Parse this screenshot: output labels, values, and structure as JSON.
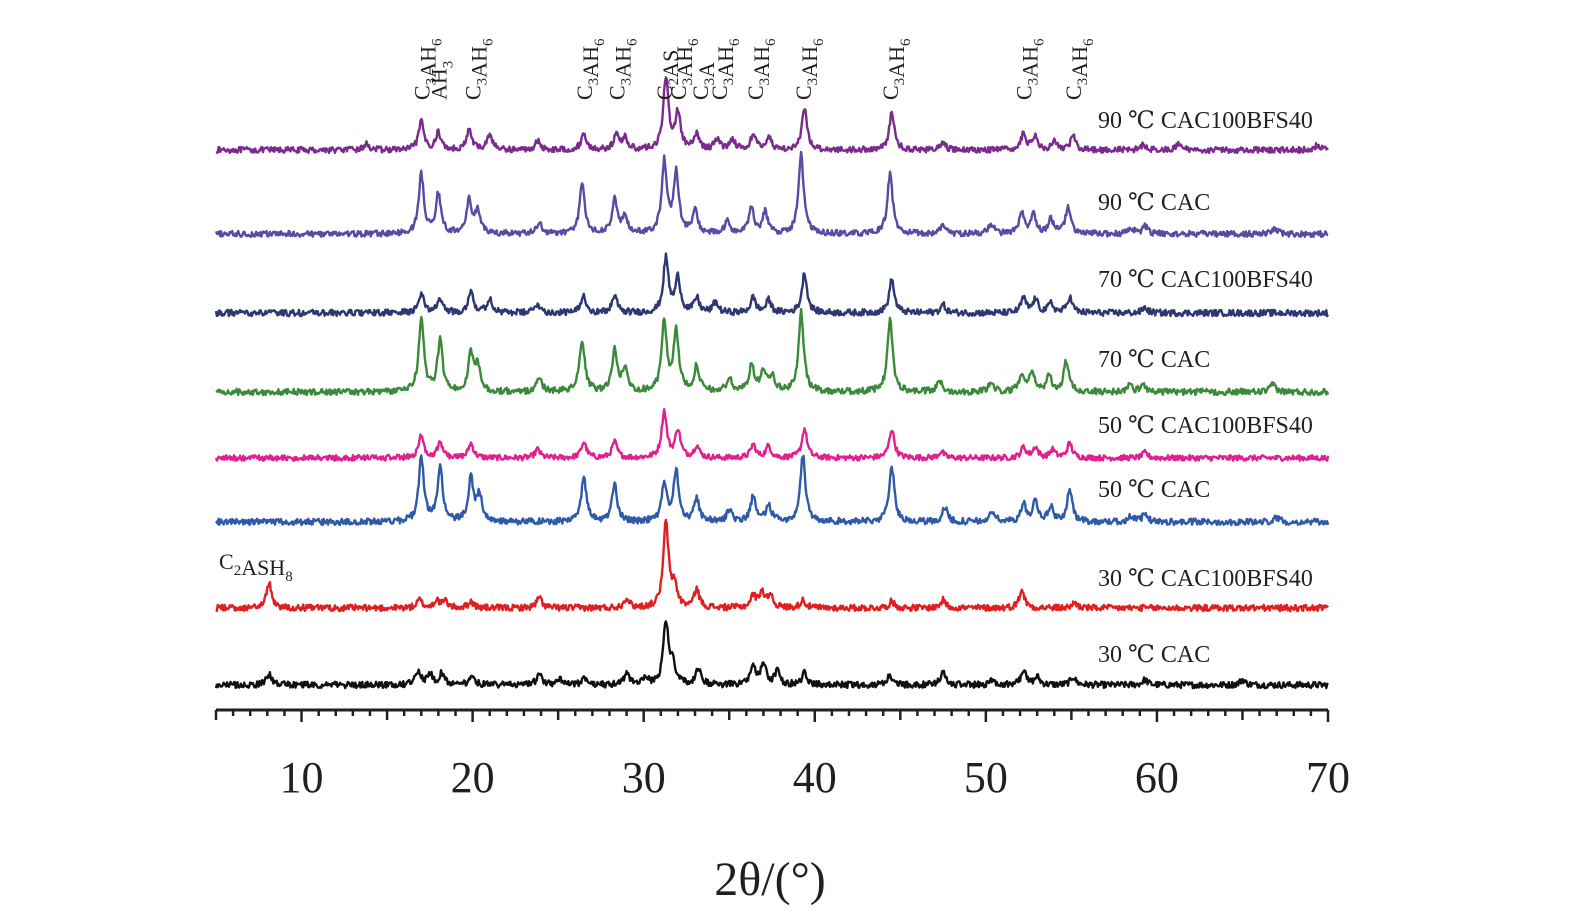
{
  "chart_data": {
    "type": "line",
    "xlabel": "2θ/(°)",
    "xlim": [
      5,
      70
    ],
    "xticks": [
      10,
      20,
      30,
      40,
      50,
      60,
      70
    ],
    "minor_step": 1,
    "grid": false,
    "series": [
      {
        "name": "90 ℃ CAC100BFS40",
        "color": "#7b2a8e",
        "noise": 0.28,
        "peaks": [
          [
            13.8,
            0.9
          ],
          [
            17.0,
            4.2
          ],
          [
            18.0,
            2.6
          ],
          [
            19.8,
            3.0
          ],
          [
            21.0,
            2.4
          ],
          [
            23.8,
            1.3
          ],
          [
            26.5,
            2.4
          ],
          [
            28.4,
            2.2
          ],
          [
            28.9,
            1.8
          ],
          [
            31.3,
            11.0
          ],
          [
            32.0,
            5.5
          ],
          [
            33.1,
            2.2
          ],
          [
            34.3,
            1.7
          ],
          [
            35.2,
            1.6
          ],
          [
            36.4,
            2.3
          ],
          [
            37.3,
            2.0
          ],
          [
            39.4,
            6.2
          ],
          [
            44.5,
            5.6
          ],
          [
            47.5,
            1.0
          ],
          [
            52.2,
            2.4
          ],
          [
            52.9,
            2.1
          ],
          [
            54.0,
            1.3
          ],
          [
            55.1,
            2.0
          ],
          [
            59.2,
            0.8
          ],
          [
            61.3,
            0.9
          ],
          [
            69.4,
            0.8
          ]
        ]
      },
      {
        "name": "90 ℃ CAC",
        "color": "#5b4aa4",
        "noise": 0.28,
        "peaks": [
          [
            17.0,
            9.0
          ],
          [
            18.0,
            6.0
          ],
          [
            19.8,
            5.0
          ],
          [
            20.3,
            3.4
          ],
          [
            23.9,
            1.6
          ],
          [
            26.4,
            7.6
          ],
          [
            28.3,
            5.2
          ],
          [
            28.9,
            2.4
          ],
          [
            31.2,
            10.8
          ],
          [
            31.9,
            9.2
          ],
          [
            33.0,
            3.4
          ],
          [
            34.9,
            1.8
          ],
          [
            36.3,
            4.0
          ],
          [
            37.1,
            3.2
          ],
          [
            39.2,
            12.0
          ],
          [
            44.4,
            9.2
          ],
          [
            47.5,
            1.4
          ],
          [
            50.3,
            1.6
          ],
          [
            52.1,
            3.0
          ],
          [
            52.8,
            2.8
          ],
          [
            53.8,
            2.2
          ],
          [
            54.8,
            4.0
          ],
          [
            58.5,
            0.9
          ],
          [
            59.3,
            1.2
          ],
          [
            66.9,
            0.8
          ]
        ]
      },
      {
        "name": "70 ℃ CAC100BFS40",
        "color": "#2e3673",
        "noise": 0.3,
        "peaks": [
          [
            17.0,
            3.0
          ],
          [
            18.1,
            2.2
          ],
          [
            19.9,
            3.4
          ],
          [
            21.0,
            2.2
          ],
          [
            23.8,
            1.4
          ],
          [
            26.5,
            2.6
          ],
          [
            28.3,
            2.6
          ],
          [
            31.3,
            8.2
          ],
          [
            32.0,
            5.2
          ],
          [
            33.1,
            2.2
          ],
          [
            34.2,
            1.6
          ],
          [
            36.4,
            2.3
          ],
          [
            37.3,
            1.9
          ],
          [
            39.4,
            6.0
          ],
          [
            44.5,
            5.0
          ],
          [
            47.5,
            1.2
          ],
          [
            52.2,
            2.2
          ],
          [
            52.9,
            2.0
          ],
          [
            53.8,
            1.4
          ],
          [
            54.9,
            2.4
          ],
          [
            59.3,
            0.8
          ]
        ]
      },
      {
        "name": "70 ℃ CAC",
        "color": "#3a8a3a",
        "noise": 0.3,
        "peaks": [
          [
            17.0,
            10.8
          ],
          [
            18.1,
            7.6
          ],
          [
            19.9,
            5.6
          ],
          [
            20.3,
            3.6
          ],
          [
            23.9,
            2.2
          ],
          [
            26.4,
            7.8
          ],
          [
            28.3,
            6.2
          ],
          [
            28.9,
            3.4
          ],
          [
            31.2,
            10.5
          ],
          [
            31.9,
            9.0
          ],
          [
            33.1,
            3.8
          ],
          [
            35.0,
            2.0
          ],
          [
            36.3,
            4.0
          ],
          [
            37.0,
            3.2
          ],
          [
            37.5,
            2.4
          ],
          [
            39.2,
            12.0
          ],
          [
            44.4,
            11.0
          ],
          [
            47.3,
            1.6
          ],
          [
            50.3,
            1.4
          ],
          [
            52.1,
            2.8
          ],
          [
            52.7,
            3.2
          ],
          [
            53.7,
            2.2
          ],
          [
            54.7,
            4.6
          ],
          [
            58.4,
            1.0
          ],
          [
            59.2,
            1.2
          ],
          [
            66.8,
            1.2
          ]
        ]
      },
      {
        "name": "50 ℃ CAC100BFS40",
        "color": "#e0208f",
        "noise": 0.26,
        "peaks": [
          [
            17.0,
            3.4
          ],
          [
            18.1,
            2.4
          ],
          [
            19.9,
            2.2
          ],
          [
            23.8,
            1.3
          ],
          [
            26.5,
            2.4
          ],
          [
            28.3,
            2.4
          ],
          [
            31.2,
            7.0
          ],
          [
            32.0,
            4.2
          ],
          [
            33.1,
            1.8
          ],
          [
            36.4,
            2.0
          ],
          [
            37.3,
            1.8
          ],
          [
            39.4,
            4.4
          ],
          [
            44.5,
            4.4
          ],
          [
            47.4,
            1.0
          ],
          [
            52.2,
            1.6
          ],
          [
            52.9,
            1.6
          ],
          [
            53.9,
            1.2
          ],
          [
            54.9,
            2.2
          ],
          [
            59.3,
            0.8
          ]
        ]
      },
      {
        "name": "50 ℃ CAC",
        "color": "#2e5aa8",
        "noise": 0.3,
        "peaks": [
          [
            17.0,
            9.6
          ],
          [
            18.1,
            8.2
          ],
          [
            19.9,
            6.6
          ],
          [
            20.4,
            3.8
          ],
          [
            26.5,
            6.8
          ],
          [
            28.3,
            5.6
          ],
          [
            31.2,
            5.6
          ],
          [
            31.9,
            7.6
          ],
          [
            33.1,
            3.4
          ],
          [
            35.0,
            1.8
          ],
          [
            36.4,
            3.8
          ],
          [
            37.3,
            2.6
          ],
          [
            39.3,
            10.2
          ],
          [
            44.5,
            8.4
          ],
          [
            47.6,
            2.2
          ],
          [
            50.4,
            1.6
          ],
          [
            52.2,
            2.6
          ],
          [
            52.9,
            3.2
          ],
          [
            53.8,
            2.2
          ],
          [
            54.9,
            4.8
          ],
          [
            58.5,
            0.9
          ],
          [
            59.3,
            1.2
          ],
          [
            67.0,
            0.7
          ]
        ]
      },
      {
        "name": "30 ℃ CAC100BFS40",
        "color": "#e02020",
        "noise": 0.3,
        "peaks": [
          [
            8.1,
            3.8
          ],
          [
            16.9,
            1.2
          ],
          [
            17.9,
            1.2
          ],
          [
            18.4,
            1.0
          ],
          [
            19.9,
            1.0
          ],
          [
            23.9,
            1.6
          ],
          [
            29.0,
            1.5
          ],
          [
            31.3,
            13.0
          ],
          [
            31.8,
            3.2
          ],
          [
            33.1,
            2.8
          ],
          [
            36.4,
            1.8
          ],
          [
            36.9,
            2.4
          ],
          [
            37.4,
            2.0
          ],
          [
            39.3,
            1.2
          ],
          [
            44.5,
            1.0
          ],
          [
            47.5,
            1.2
          ],
          [
            52.1,
            2.8
          ],
          [
            55.2,
            0.8
          ]
        ]
      },
      {
        "name": "30 ℃ CAC",
        "color": "#111111",
        "noise": 0.3,
        "peaks": [
          [
            8.1,
            1.6
          ],
          [
            16.8,
            2.2
          ],
          [
            17.5,
            1.6
          ],
          [
            18.2,
            1.8
          ],
          [
            20.0,
            1.4
          ],
          [
            23.9,
            1.6
          ],
          [
            25.1,
            0.9
          ],
          [
            26.5,
            0.8
          ],
          [
            29.0,
            1.8
          ],
          [
            30.1,
            1.0
          ],
          [
            31.3,
            9.5
          ],
          [
            31.7,
            3.2
          ],
          [
            33.2,
            2.6
          ],
          [
            36.4,
            2.8
          ],
          [
            37.0,
            3.2
          ],
          [
            37.8,
            2.0
          ],
          [
            39.4,
            1.8
          ],
          [
            44.4,
            1.4
          ],
          [
            47.5,
            1.8
          ],
          [
            50.4,
            0.8
          ],
          [
            52.2,
            2.2
          ],
          [
            53.0,
            1.2
          ],
          [
            55.1,
            1.2
          ],
          [
            59.3,
            0.8
          ],
          [
            65.0,
            0.8
          ]
        ]
      }
    ],
    "peak_labels": [
      {
        "text": "C3AH6",
        "x": 17.0
      },
      {
        "text": "AH3",
        "x": 18.0
      },
      {
        "text": "C3AH6",
        "x": 20.0
      },
      {
        "text": "C3AH6",
        "x": 26.5
      },
      {
        "text": "C3AH6",
        "x": 28.4
      },
      {
        "text": "C2AS",
        "x": 31.2
      },
      {
        "text": "C3AH6",
        "x": 32.0
      },
      {
        "text": "C3A",
        "x": 33.3
      },
      {
        "text": "C3AH6",
        "x": 34.4
      },
      {
        "text": "C3AH6",
        "x": 36.5
      },
      {
        "text": "C3AH6",
        "x": 39.3
      },
      {
        "text": "C3AH6",
        "x": 44.4
      },
      {
        "text": "C3AH6",
        "x": 52.2
      },
      {
        "text": "C3AH6",
        "x": 55.1
      }
    ],
    "annotations": [
      {
        "text": "C2ASH8",
        "x": 8.1
      }
    ]
  }
}
